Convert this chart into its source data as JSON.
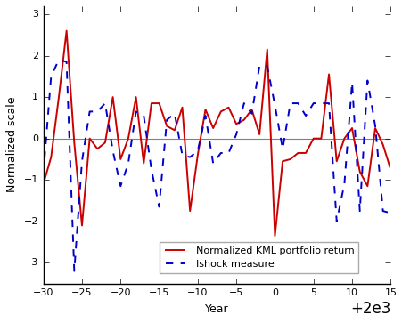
{
  "title": "",
  "xlabel": "Year",
  "ylabel": "Normalized scale",
  "xlim": [
    1970,
    2015
  ],
  "ylim": [
    -3.5,
    3.2
  ],
  "yticks": [
    -3,
    -2,
    -1,
    0,
    1,
    2,
    3
  ],
  "xticks": [
    1970,
    1975,
    1980,
    1985,
    1990,
    1995,
    2000,
    2005,
    2010,
    2015
  ],
  "red_color": "#cc0000",
  "blue_color": "#0000cc",
  "legend_labels": [
    "Normalized KML portfolio return",
    "Ishock measure"
  ],
  "kml_years": [
    1970,
    1971,
    1972,
    1973,
    1974,
    1975,
    1976,
    1977,
    1978,
    1979,
    1980,
    1981,
    1982,
    1983,
    1984,
    1985,
    1986,
    1987,
    1988,
    1989,
    1990,
    1991,
    1992,
    1993,
    1994,
    1995,
    1996,
    1997,
    1998,
    1999,
    2000,
    2001,
    2002,
    2003,
    2004,
    2005,
    2006,
    2007,
    2008,
    2009,
    2010,
    2011,
    2012,
    2013,
    2014,
    2015
  ],
  "kml_values": [
    -1.1,
    -0.45,
    1.0,
    2.6,
    -0.1,
    -2.1,
    0.0,
    -0.25,
    -0.1,
    1.0,
    -0.5,
    0.0,
    1.0,
    -0.6,
    0.85,
    0.85,
    0.3,
    0.2,
    0.75,
    -1.75,
    -0.4,
    0.7,
    0.25,
    0.65,
    0.75,
    0.35,
    0.45,
    0.7,
    0.1,
    2.15,
    -2.35,
    -0.55,
    -0.5,
    -0.35,
    -0.35,
    0.0,
    0.0,
    1.55,
    -0.55,
    0.0,
    0.25,
    -0.8,
    -1.15,
    0.25,
    -0.15,
    -0.75
  ],
  "ishock_years": [
    1970,
    1971,
    1972,
    1973,
    1974,
    1975,
    1976,
    1977,
    1978,
    1979,
    1980,
    1981,
    1982,
    1983,
    1984,
    1985,
    1986,
    1987,
    1988,
    1989,
    1990,
    1991,
    1992,
    1993,
    1994,
    1995,
    1996,
    1997,
    1998,
    1999,
    2000,
    2001,
    2002,
    2003,
    2004,
    2005,
    2006,
    2007,
    2008,
    2009,
    2010,
    2011,
    2012,
    2013,
    2014,
    2015
  ],
  "ishock_values": [
    -0.85,
    1.5,
    1.9,
    1.85,
    -3.2,
    -0.55,
    0.65,
    0.65,
    0.85,
    -0.3,
    -1.15,
    -0.6,
    0.65,
    0.55,
    -0.75,
    -1.65,
    0.45,
    0.6,
    -0.4,
    -0.45,
    -0.3,
    0.55,
    -0.6,
    -0.35,
    -0.35,
    0.1,
    0.85,
    0.6,
    1.75,
    1.75,
    0.8,
    -0.25,
    0.85,
    0.85,
    0.55,
    0.85,
    0.85,
    0.85,
    -2.0,
    -1.1,
    1.35,
    -1.75,
    1.4,
    0.3,
    -1.75,
    -1.8
  ]
}
